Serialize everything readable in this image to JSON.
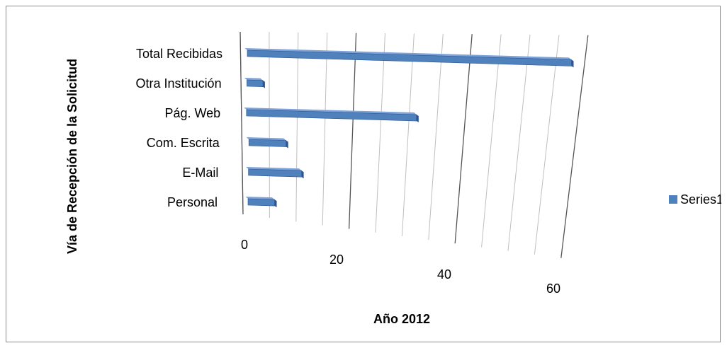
{
  "chart_data": {
    "type": "bar",
    "orientation": "horizontal",
    "style": "3d-perspective",
    "categories": [
      "Personal",
      "E-Mail",
      "Com. Escrita",
      "Pág. Web",
      "Otra Institución",
      "Total Recibidas"
    ],
    "series": [
      {
        "name": "Series1",
        "values": [
          5,
          10,
          7,
          32,
          3,
          61
        ]
      }
    ],
    "x_ticks": [
      "0",
      "20",
      "40",
      "60"
    ],
    "xlim": [
      0,
      60
    ],
    "xlabel": "Año 2012",
    "ylabel": "Vía de Recepción de la Solicitud",
    "grid": true,
    "legend_position": "right",
    "colors": {
      "bar": "#4f81bd",
      "bar_dark": "#2c5592",
      "bar_light": "#7da2d8",
      "grid": "#bfbfbf",
      "axis_major": "#555555",
      "frame": "#8c8c8c"
    }
  }
}
